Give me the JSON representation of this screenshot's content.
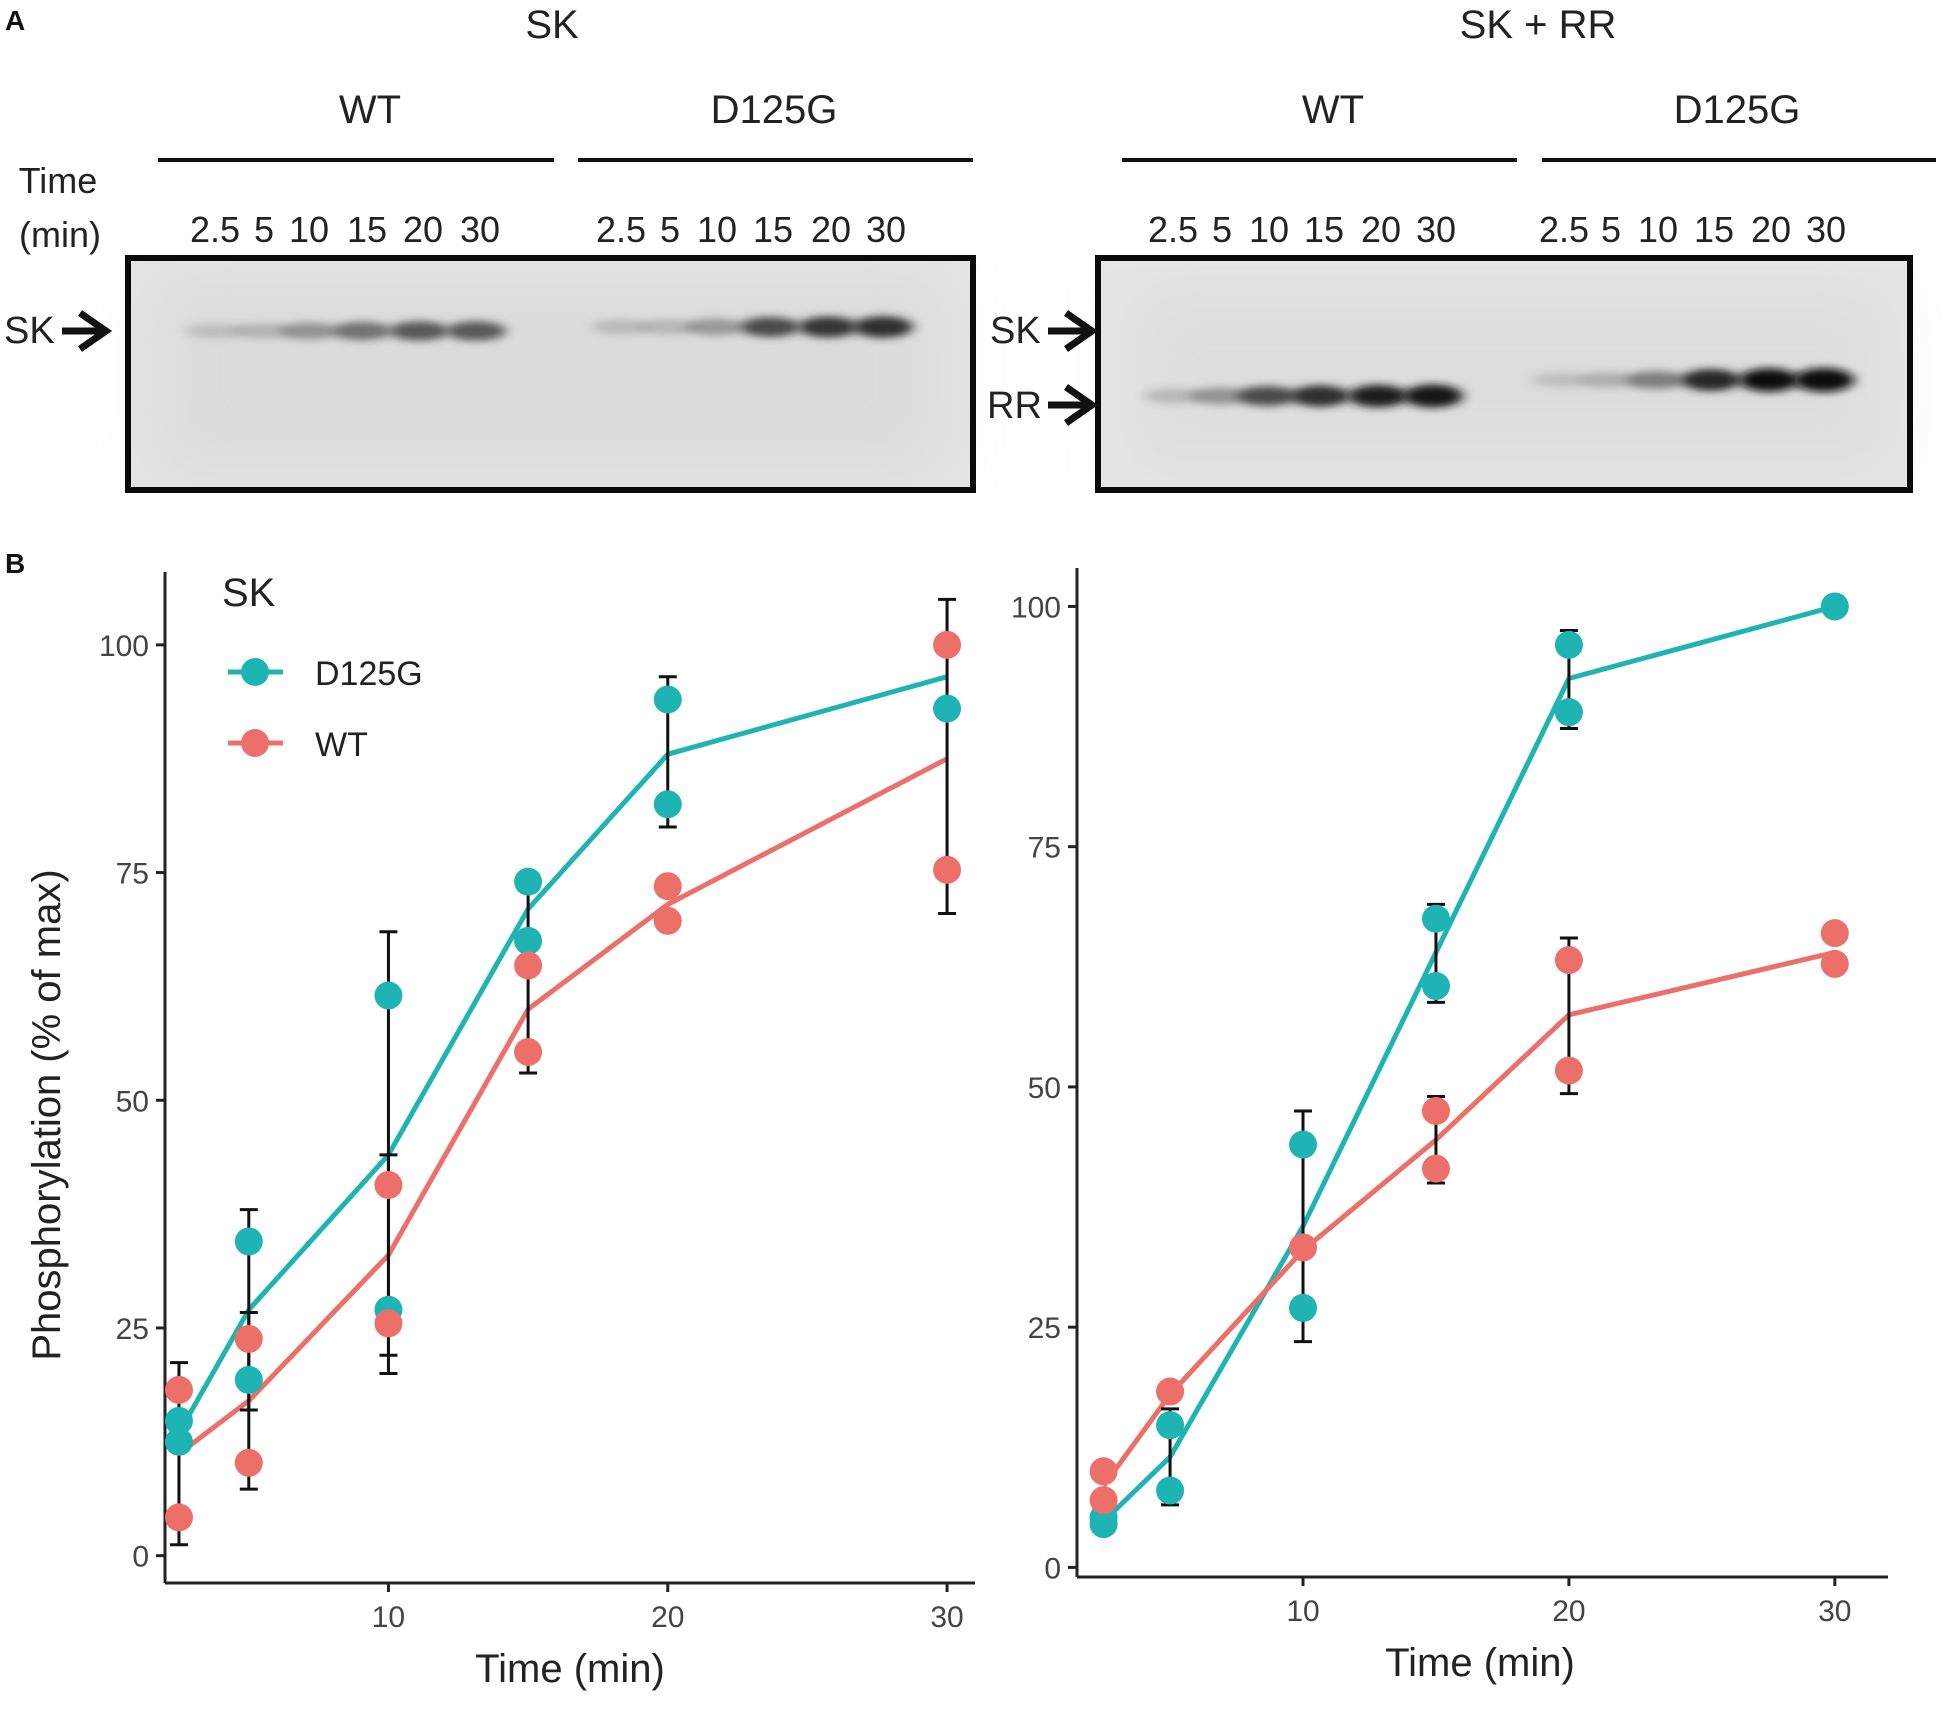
{
  "panel_a": {
    "label": "A",
    "blots": [
      {
        "title": "SK",
        "groups": [
          "WT",
          "D125G"
        ],
        "time_label_lines": [
          "Time",
          "(min)"
        ],
        "lanes": [
          "2.5",
          "5",
          "10",
          "15",
          "20",
          "30"
        ],
        "markers": [
          "SK"
        ],
        "band_intensity": {
          "SK": {
            "WT": [
              0.05,
              0.12,
              0.3,
              0.45,
              0.55,
              0.55
            ],
            "D125G": [
              0.08,
              0.1,
              0.28,
              0.6,
              0.7,
              0.75
            ]
          }
        }
      },
      {
        "title": "SK + RR",
        "groups": [
          "WT",
          "D125G"
        ],
        "lanes": [
          "2.5",
          "5",
          "10",
          "15",
          "20",
          "30"
        ],
        "markers": [
          "SK",
          "RR"
        ],
        "band_intensity": {
          "RR": {
            "WT": [
              0.1,
              0.3,
              0.6,
              0.75,
              0.85,
              0.9
            ],
            "D125G": [
              0.05,
              0.15,
              0.4,
              0.8,
              0.95,
              1.0
            ]
          }
        }
      }
    ]
  },
  "panel_b": {
    "label": "B"
  },
  "chart_data": [
    {
      "type": "line",
      "title": "",
      "xlabel": "Time (min)",
      "ylabel": "Phosphorylation (% of max)",
      "xlim": [
        2,
        31
      ],
      "ylim": [
        -3,
        108
      ],
      "xticks": [
        10,
        20,
        30
      ],
      "yticks": [
        0,
        25,
        50,
        75,
        100
      ],
      "grid": false,
      "legend": {
        "title": "SK",
        "position": "top-left",
        "entries": [
          "D125G",
          "WT"
        ]
      },
      "series": [
        {
          "name": "D125G",
          "color": "#1eb4b4",
          "mean": {
            "x": [
              2.5,
              5,
              10,
              15,
              20,
              30
            ],
            "y": [
              13.5,
              27,
              44,
              71,
              88,
              96.5
            ]
          },
          "points": {
            "x": [
              2.5,
              2.5,
              5,
              5,
              10,
              10,
              15,
              15,
              20,
              20,
              30
            ],
            "y": [
              12.5,
              14.8,
              34.5,
              19.3,
              61.5,
              27,
              74,
              67.5,
              94,
              82.5,
              93
            ]
          },
          "error": {
            "x": [
              5,
              10,
              15,
              20
            ],
            "low": [
              16,
              20,
              68,
              80
            ],
            "high": [
              38,
              68.5,
              74,
              96.5
            ]
          }
        },
        {
          "name": "WT",
          "color": "#ec6f69",
          "mean": {
            "x": [
              2.5,
              5,
              10,
              15,
              20,
              30
            ],
            "y": [
              11.2,
              17,
              33,
              60,
              71.5,
              87.5
            ]
          },
          "points": {
            "x": [
              2.5,
              2.5,
              5,
              5,
              10,
              10,
              15,
              15,
              20,
              20,
              30,
              30
            ],
            "y": [
              18.2,
              4.2,
              23.8,
              10.2,
              40.7,
              25.5,
              64.8,
              55.3,
              73.5,
              69.7,
              100,
              75.3
            ]
          },
          "error": {
            "x": [
              2.5,
              5,
              10,
              15,
              30
            ],
            "low": [
              1.2,
              7.3,
              22,
              53,
              70.5
            ],
            "high": [
              21.2,
              26.7,
              44,
              67,
              105
            ]
          }
        }
      ]
    },
    {
      "type": "line",
      "title": "",
      "xlabel": "Time (min)",
      "ylabel": "",
      "xlim": [
        1.5,
        32
      ],
      "ylim": [
        -1,
        104
      ],
      "xticks": [
        10,
        20,
        30
      ],
      "yticks": [
        0,
        25,
        50,
        75,
        100
      ],
      "grid": false,
      "series": [
        {
          "name": "D125G",
          "color": "#1eb4b4",
          "mean": {
            "x": [
              2.5,
              5,
              10,
              15,
              20,
              30
            ],
            "y": [
              4.8,
              11.5,
              35.5,
              64,
              92.5,
              100
            ]
          },
          "points": {
            "x": [
              2.5,
              2.5,
              5,
              5,
              10,
              10,
              15,
              15,
              20,
              20,
              30
            ],
            "y": [
              4.5,
              5.2,
              14.8,
              8.0,
              44,
              27,
              67.5,
              60.5,
              96,
              89,
              100
            ]
          },
          "error": {
            "x": [
              5,
              10,
              15,
              20
            ],
            "low": [
              6.5,
              23.5,
              58.8,
              87.3
            ],
            "high": [
              16.5,
              47.5,
              69,
              97.5
            ]
          }
        },
        {
          "name": "WT",
          "color": "#ec6f69",
          "mean": {
            "x": [
              2.5,
              5,
              10,
              15,
              20,
              30
            ],
            "y": [
              8.5,
              18,
              33,
              44.5,
              57.5,
              64
            ]
          },
          "points": {
            "x": [
              2.5,
              2.5,
              5,
              10,
              15,
              15,
              20,
              20,
              30,
              30
            ],
            "y": [
              10,
              7,
              18.3,
              33.3,
              47.5,
              41.5,
              63.2,
              51.7,
              66,
              62.8
            ]
          },
          "error": {
            "x": [
              15,
              20
            ],
            "low": [
              40,
              49.3
            ],
            "high": [
              49,
              65.5
            ]
          }
        }
      ]
    }
  ]
}
